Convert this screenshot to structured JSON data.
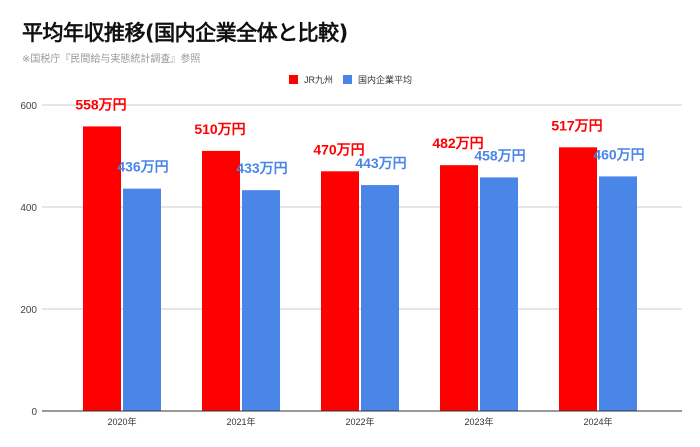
{
  "chart_data": {
    "type": "bar",
    "title": "平均年収推移(国内企業全体と比較)",
    "subtitle": "※国税庁『民間給与実態統計調査』参照",
    "categories": [
      "2020年",
      "2021年",
      "2022年",
      "2023年",
      "2024年"
    ],
    "series": [
      {
        "name": "JR九州",
        "color": "#ff0000",
        "values": [
          558,
          510,
          470,
          482,
          517
        ],
        "labels": [
          "558万円",
          "510万円",
          "470万円",
          "482万円",
          "517万円"
        ]
      },
      {
        "name": "国内企業平均",
        "color": "#4a86e8",
        "values": [
          436,
          433,
          443,
          458,
          460
        ],
        "labels": [
          "436万円",
          "433万円",
          "443万円",
          "458万円",
          "460万円"
        ]
      }
    ],
    "yticks": [
      0,
      200,
      400,
      600
    ],
    "ylim": [
      0,
      600
    ],
    "grid": true,
    "legend": "top-right"
  }
}
